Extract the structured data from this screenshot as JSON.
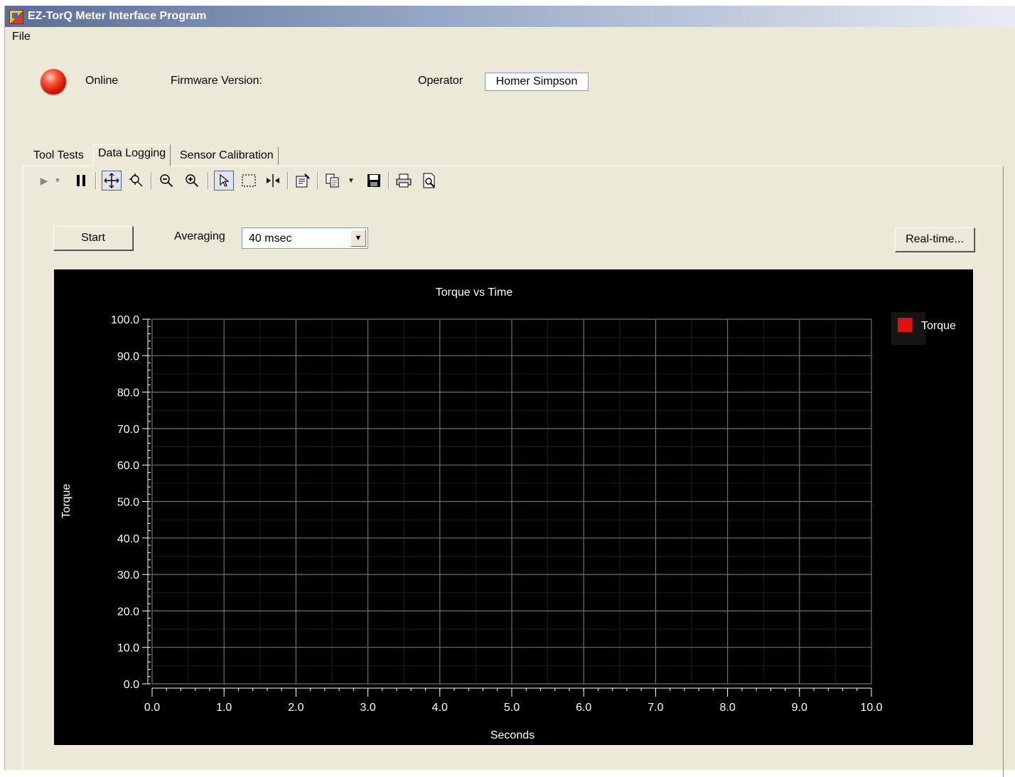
{
  "window": {
    "title": "EZ-TorQ Meter Interface Program",
    "app_icon": "app-icon"
  },
  "menu": {
    "items": [
      {
        "label": "File"
      }
    ]
  },
  "status": {
    "online_label": "Online",
    "led_color": "#e02000",
    "firmware_label": "Firmware Version:",
    "operator_label": "Operator",
    "operator_value": "Homer Simpson"
  },
  "tabs": [
    {
      "label": "Tool Tests",
      "active": false
    },
    {
      "label": "Data Logging",
      "active": true
    },
    {
      "label": "Sensor Calibration",
      "active": false
    }
  ],
  "toolbar": {
    "icons": [
      "play-icon",
      "dropdown-arrow-icon",
      "pause-icon",
      "pan-icon",
      "zoom-axis-icon",
      "zoom-out-icon",
      "zoom-in-icon",
      "pointer-icon",
      "select-rectangle-icon",
      "cursor-icon",
      "properties-icon",
      "copy-icon",
      "dropdown-arrow-icon",
      "save-icon",
      "print-icon",
      "print-preview-icon"
    ]
  },
  "controls": {
    "start_label": "Start",
    "averaging_label": "Averaging",
    "averaging_value": "40 msec",
    "realtime_label": "Real-time..."
  },
  "chart_data": {
    "type": "line",
    "title": "Torque vs Time",
    "xlabel": "Seconds",
    "ylabel": "Torque",
    "xlim": [
      0,
      10
    ],
    "ylim": [
      0,
      100
    ],
    "x_ticks": [
      "0.0",
      "1.0",
      "2.0",
      "3.0",
      "4.0",
      "5.0",
      "6.0",
      "7.0",
      "8.0",
      "9.0",
      "10.0"
    ],
    "y_ticks": [
      "0.0",
      "10.0",
      "20.0",
      "30.0",
      "40.0",
      "50.0",
      "60.0",
      "70.0",
      "80.0",
      "90.0",
      "100.0"
    ],
    "grid": true,
    "legend_position": "top-right",
    "series": [
      {
        "name": "Torque",
        "color": "#e01010",
        "x": [],
        "y": []
      }
    ],
    "background": "#000000",
    "grid_color": "#5a7a70"
  }
}
